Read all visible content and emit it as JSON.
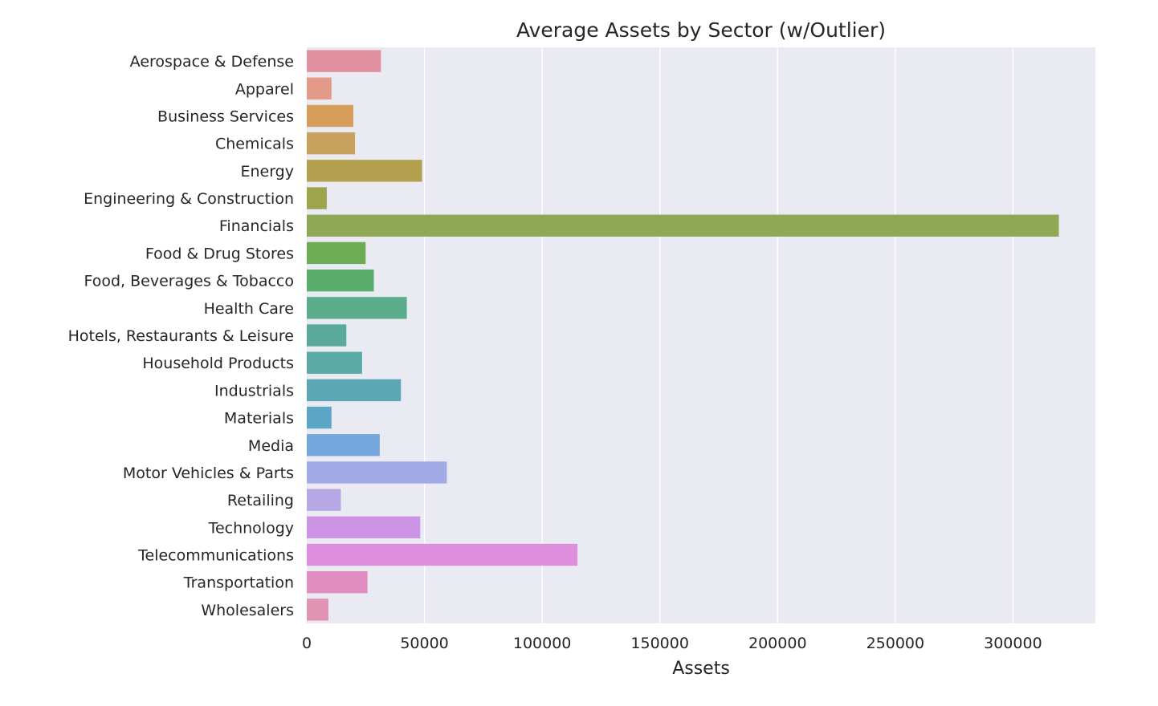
{
  "chart_data": {
    "type": "bar",
    "orientation": "horizontal",
    "title": "Average Assets by Sector (w/Outlier)",
    "xlabel": "Assets",
    "ylabel": "",
    "xlim": [
      0,
      335000
    ],
    "xticks": [
      0,
      50000,
      100000,
      150000,
      200000,
      250000,
      300000
    ],
    "grid": true,
    "background_color": "#eaeaf2",
    "grid_color": "#ffffff",
    "categories": [
      "Aerospace & Defense",
      "Apparel",
      "Business Services",
      "Chemicals",
      "Energy",
      "Engineering & Construction",
      "Financials",
      "Food & Drug Stores",
      "Food, Beverages & Tobacco",
      "Health Care",
      "Hotels, Restaurants & Leisure",
      "Household Products",
      "Industrials",
      "Materials",
      "Media",
      "Motor Vehicles & Parts",
      "Retailing",
      "Technology",
      "Telecommunications",
      "Transportation",
      "Wholesalers"
    ],
    "values": [
      31500,
      10500,
      19800,
      20500,
      49000,
      8500,
      319500,
      25000,
      28500,
      42500,
      16800,
      23500,
      40000,
      10500,
      31000,
      59500,
      14500,
      48200,
      115000,
      25800,
      9200
    ],
    "colors": [
      "#e1909f",
      "#e39a88",
      "#d99d5b",
      "#c8a15d",
      "#b3a04f",
      "#9ea44c",
      "#8ea855",
      "#6dac52",
      "#5bad6e",
      "#5aac8c",
      "#59aa9a",
      "#5aa9a5",
      "#5ba7b4",
      "#5ca6c8",
      "#73a7dc",
      "#a2aae6",
      "#b7a7e4",
      "#cc94e4",
      "#dd8edc",
      "#e18dc1",
      "#e193b2"
    ]
  }
}
